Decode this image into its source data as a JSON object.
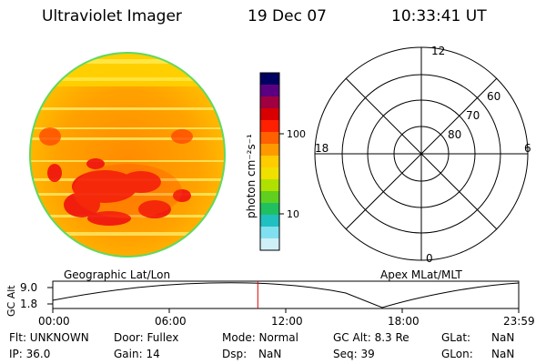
{
  "header": {
    "title": "Ultraviolet Imager",
    "date": "19 Dec 07",
    "time": "10:33:41 UT"
  },
  "left_panel": {
    "caption": "Geographic Lat/Lon"
  },
  "right_panel": {
    "caption": "Apex MLat/MLT",
    "mlt_labels": {
      "top": "12",
      "left": "18",
      "right": "6",
      "bottom": "0"
    },
    "lat_labels": [
      "60",
      "70",
      "80"
    ]
  },
  "colorbar": {
    "unit_label": "photon cm⁻²s⁻¹",
    "ticks": [
      "100",
      "10"
    ],
    "colors": [
      "#000060",
      "#5a0080",
      "#a00040",
      "#d80000",
      "#ff2000",
      "#ff6000",
      "#ff9900",
      "#ffcc00",
      "#f0e000",
      "#b0e000",
      "#60d020",
      "#20c060",
      "#20c0c0",
      "#80e0f0",
      "#d0f0f8"
    ]
  },
  "timeline": {
    "ylabel": "GC Alt",
    "yticks": [
      "9.0",
      "1.8"
    ],
    "xticks": [
      "00:00",
      "06:00",
      "12:00",
      "18:00",
      "23:59"
    ],
    "current_time_hours": 10.56,
    "marker_color": "#e00000"
  },
  "info": {
    "row1": [
      "Flt: UNKNOWN",
      "Door: Fullex",
      "Mode: Normal",
      "GC Alt: 8.3 Re",
      "GLat:",
      "NaN"
    ],
    "row2": [
      "IP: 36.0",
      "Gain: 14",
      "Dsp:",
      "NaN",
      "Seq: 39",
      "GLon:",
      "NaN"
    ]
  }
}
